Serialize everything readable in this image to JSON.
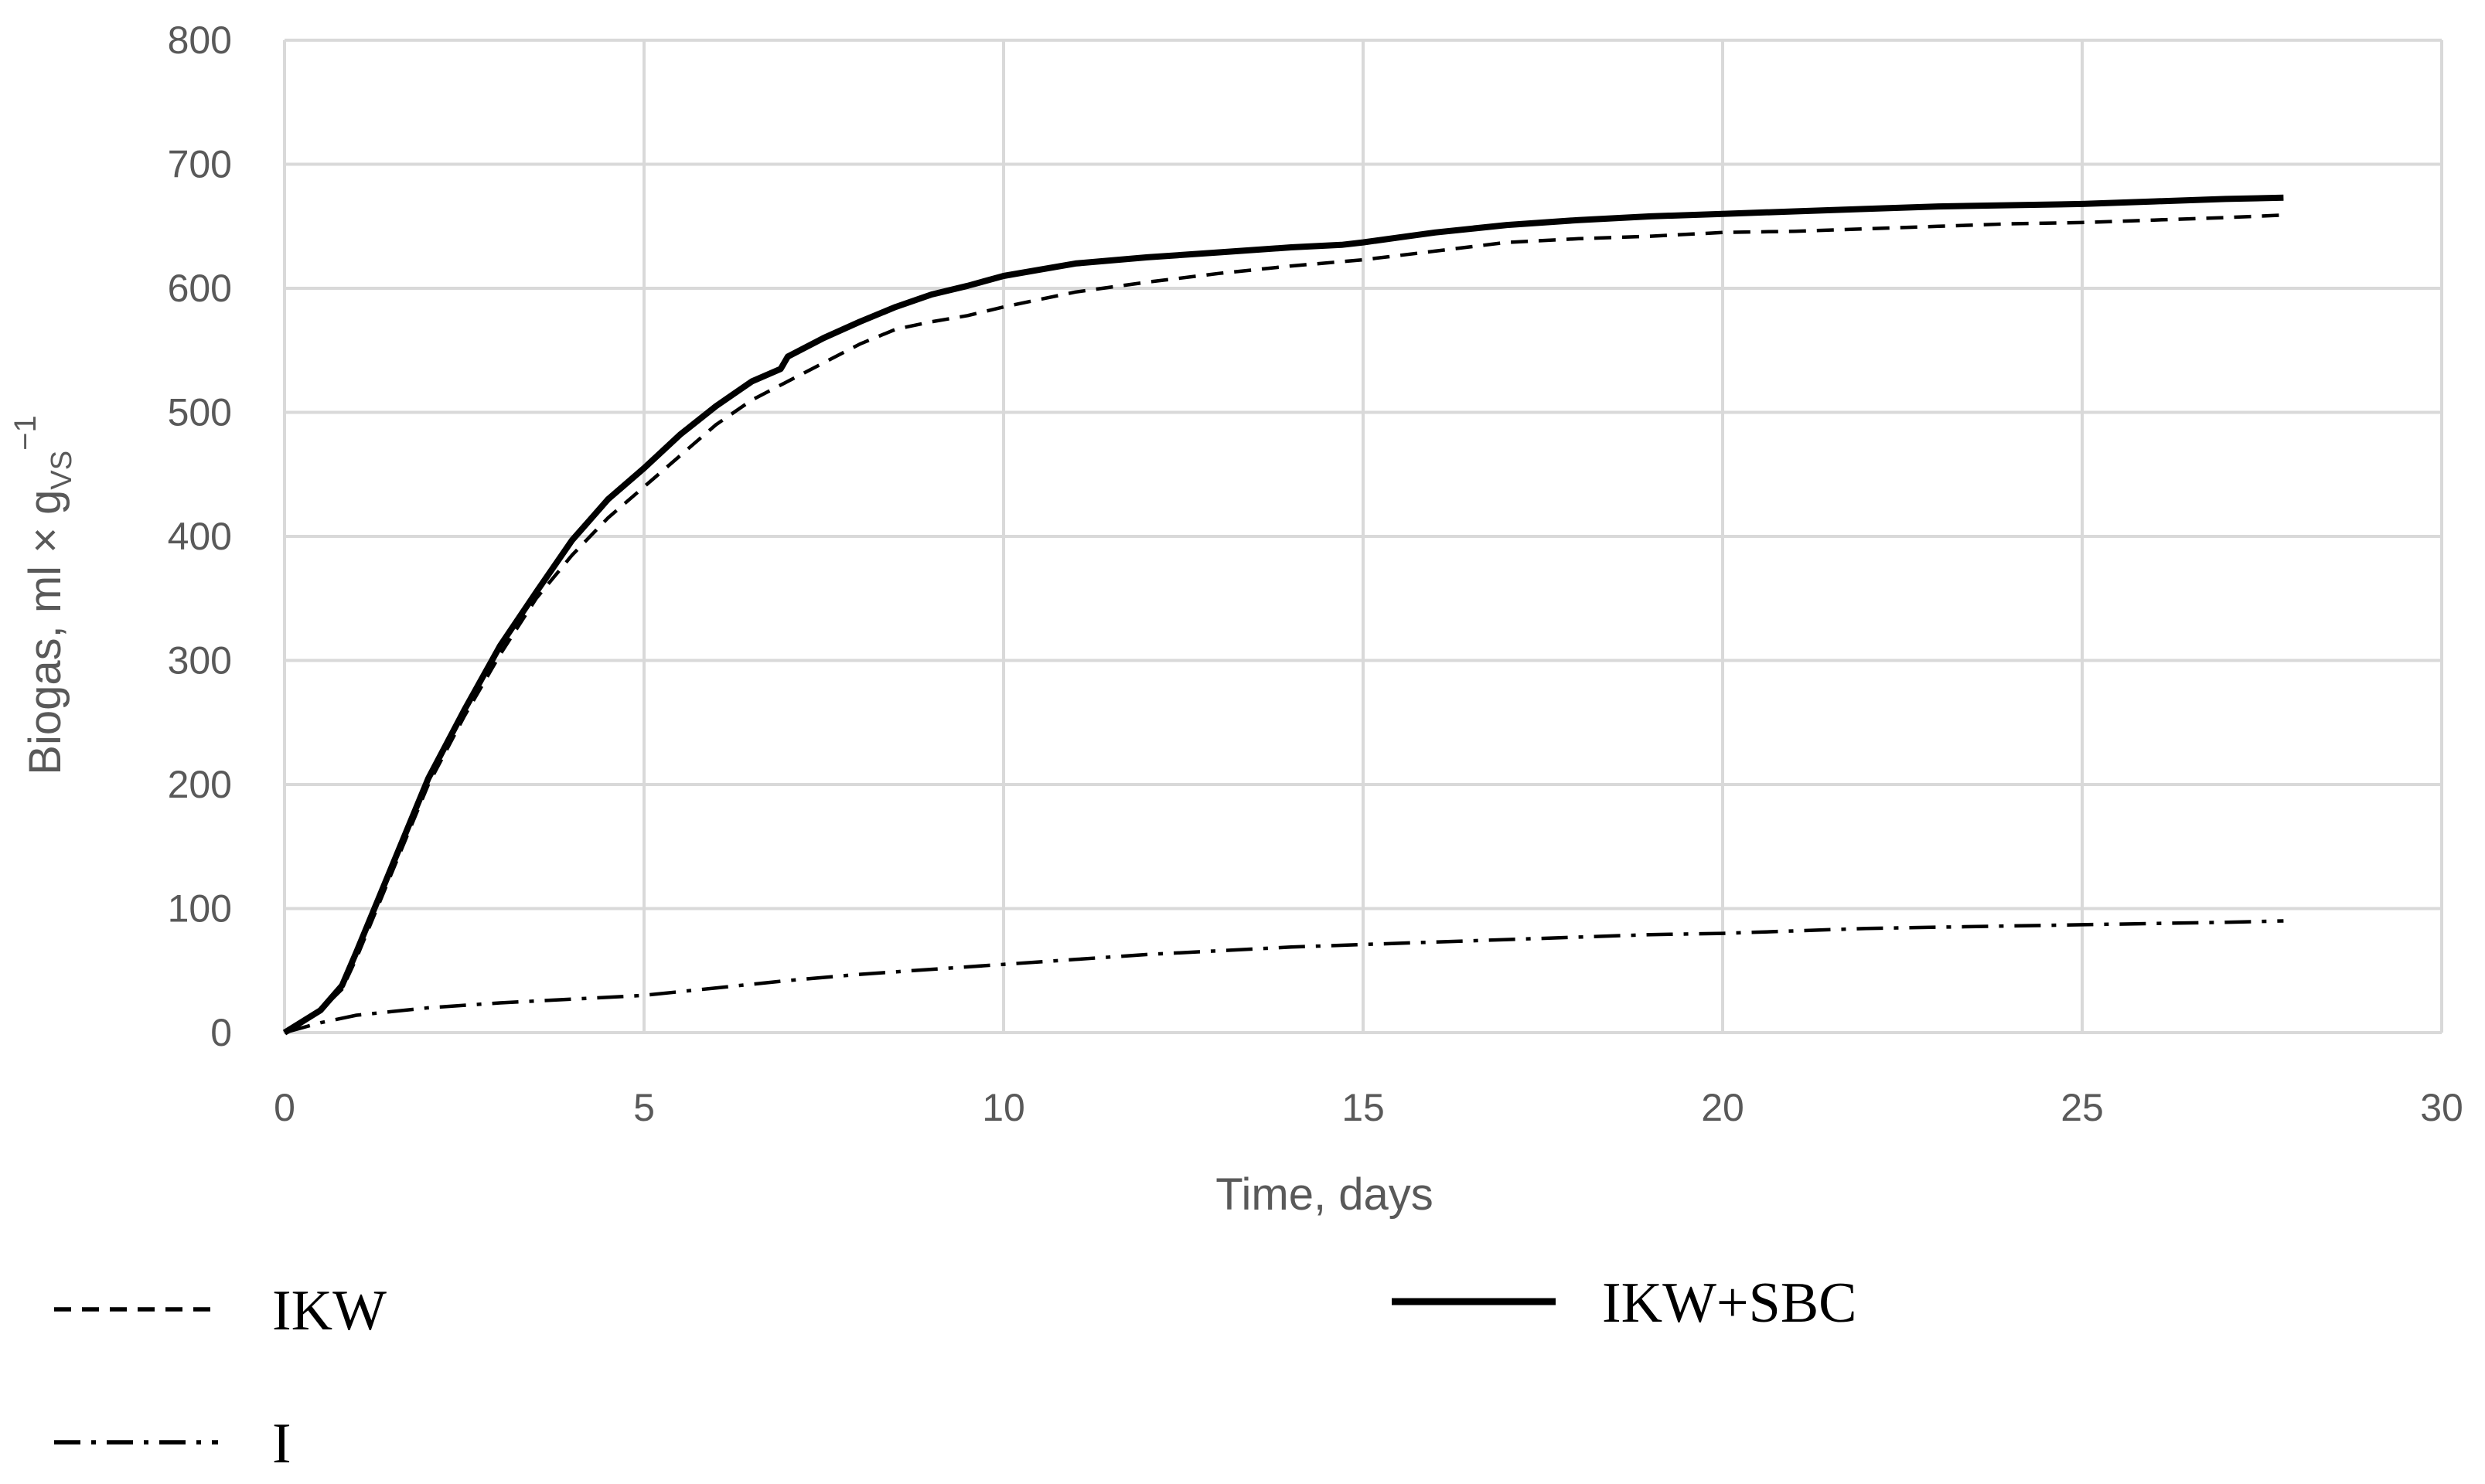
{
  "chart_data": {
    "type": "line",
    "xlabel": "Time, days",
    "ylabel": {
      "main": "Biogas, ml × g",
      "subscript": "VS",
      "superscript": "−1"
    },
    "xlim": [
      0,
      30
    ],
    "ylim": [
      0,
      800
    ],
    "x_ticks": [
      "0",
      "5",
      "10",
      "15",
      "20",
      "25",
      "30"
    ],
    "y_ticks": [
      "0",
      "100",
      "200",
      "300",
      "400",
      "500",
      "600",
      "700",
      "800"
    ],
    "grid": true,
    "legend_placement": "bottom",
    "series": [
      {
        "name": "IKW",
        "style": "dashed",
        "color": "#000000",
        "x": [
          0,
          0.5,
          0.8,
          1,
          1.5,
          2,
          2.5,
          3,
          3.5,
          4,
          4.5,
          5,
          5.5,
          6,
          6.5,
          7,
          7.5,
          8,
          8.5,
          9,
          9.5,
          10,
          11,
          12,
          13,
          14,
          15,
          16,
          17,
          18,
          19,
          20,
          21,
          22,
          23,
          24,
          25,
          26,
          27,
          27.8
        ],
        "y": [
          0,
          18,
          35,
          60,
          130,
          200,
          255,
          305,
          350,
          385,
          415,
          440,
          465,
          490,
          510,
          525,
          540,
          555,
          567,
          573,
          578,
          585,
          597,
          605,
          612,
          618,
          623,
          630,
          637,
          640,
          642,
          645,
          646,
          648,
          650,
          652,
          653,
          655,
          657,
          659
        ]
      },
      {
        "name": "IKW+SBC",
        "style": "solid",
        "color": "#000000",
        "x": [
          0,
          0.5,
          0.8,
          1,
          1.5,
          2,
          2.5,
          3,
          3.5,
          4,
          4.5,
          5,
          5.5,
          6,
          6.5,
          6.9,
          7,
          7.5,
          8,
          8.5,
          9,
          9.5,
          10,
          10.5,
          11,
          12,
          13,
          14,
          14.7,
          15,
          15.5,
          16,
          17,
          18,
          19,
          20,
          21,
          22,
          23,
          24,
          25,
          26,
          27,
          27.8
        ],
        "y": [
          0,
          18,
          38,
          65,
          135,
          205,
          260,
          312,
          355,
          397,
          430,
          455,
          482,
          505,
          525,
          535,
          545,
          560,
          573,
          585,
          595,
          602,
          610,
          615,
          620,
          625,
          629,
          633,
          635,
          637,
          641,
          645,
          651,
          655,
          658,
          660,
          662,
          664,
          666,
          667,
          668,
          670,
          672,
          673
        ]
      },
      {
        "name": "I",
        "style": "dashdot",
        "color": "#000000",
        "x": [
          0,
          0.5,
          1,
          2,
          3,
          4,
          5,
          6,
          7,
          8,
          9,
          10,
          11,
          12,
          13,
          14,
          15,
          16,
          17,
          18,
          19,
          20,
          21,
          22,
          23,
          24,
          25,
          26,
          27,
          27.8
        ],
        "y": [
          0,
          8,
          14,
          20,
          24,
          27,
          30,
          36,
          42,
          47,
          51,
          55,
          59,
          63,
          66,
          69,
          71,
          73,
          75,
          77,
          79,
          80,
          82,
          84,
          85,
          86,
          87,
          88,
          89,
          90
        ]
      }
    ]
  }
}
